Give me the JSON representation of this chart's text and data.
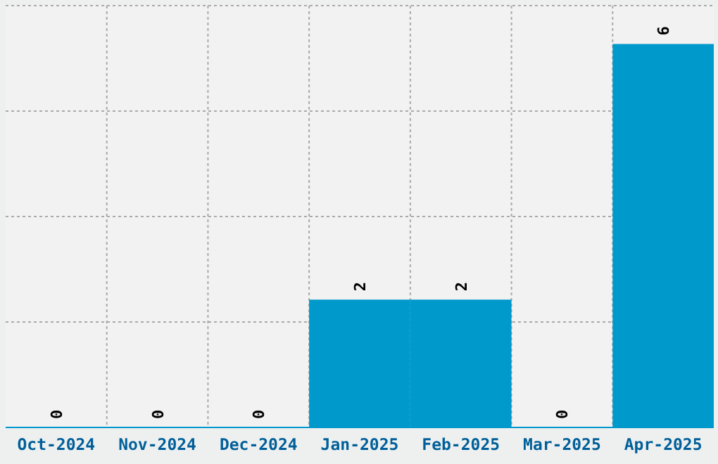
{
  "chart_data": {
    "type": "bar",
    "categories": [
      "Oct-2024",
      "Nov-2024",
      "Dec-2024",
      "Jan-2025",
      "Feb-2025",
      "Mar-2025",
      "Apr-2025"
    ],
    "values": [
      0,
      0,
      0,
      2,
      2,
      0,
      6
    ],
    "color": "#0099cc",
    "data_labels": true,
    "ylim": [
      0,
      6.6
    ],
    "yticks": [
      {
        "value": 1.65,
        "label": null
      },
      {
        "value": 3.3,
        "label": null
      },
      {
        "value": 4.95,
        "label": null
      },
      {
        "value": 6.6,
        "label": null
      }
    ],
    "tick_labels": "x",
    "grid": true
  }
}
